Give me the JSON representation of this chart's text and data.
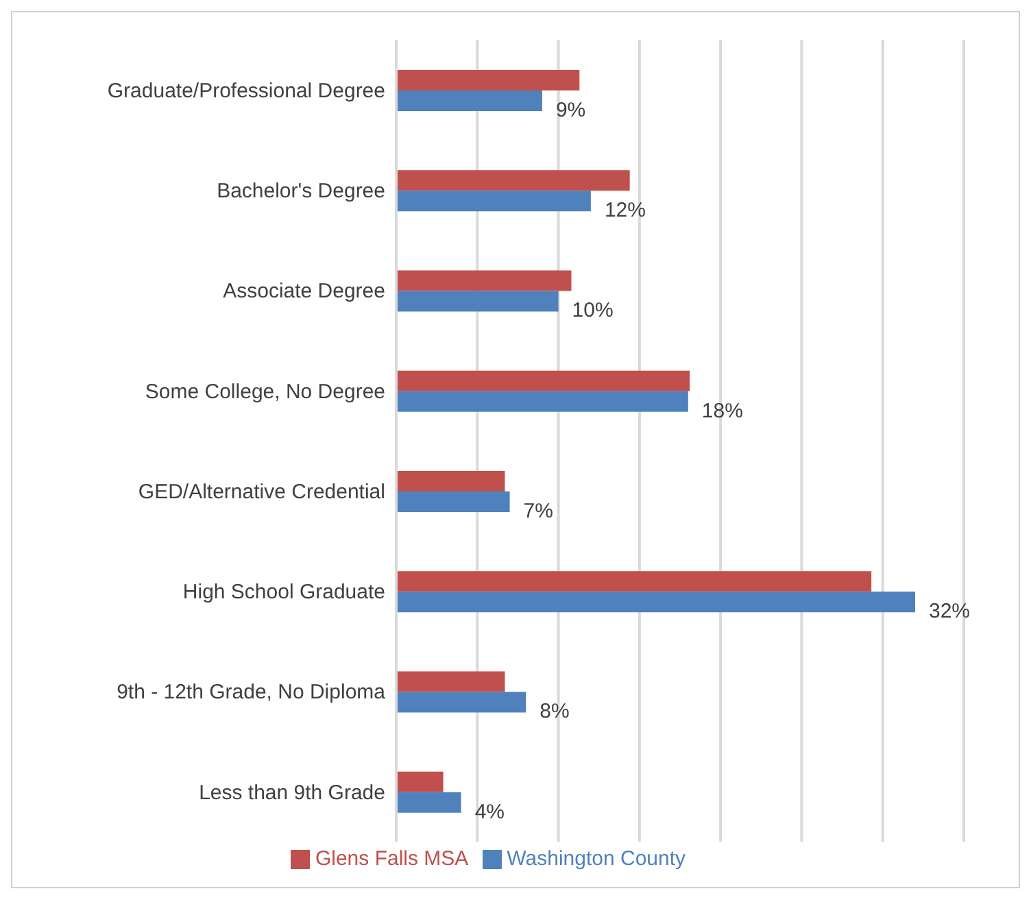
{
  "chart_data": {
    "type": "bar",
    "orientation": "horizontal",
    "categories": [
      "Graduate/Professional Degree",
      "Bachelor's Degree",
      "Associate Degree",
      "Some College, No Degree",
      "GED/Alternative Credential",
      "High School Graduate",
      "9th - 12th Grade, No Diploma",
      "Less than 9th Grade"
    ],
    "series": [
      {
        "name": "Glens Falls MSA",
        "color": "#c0504d",
        "values": [
          11.3,
          14.4,
          10.8,
          18.1,
          6.7,
          29.3,
          6.7,
          2.9
        ]
      },
      {
        "name": "Washington County",
        "color": "#4f81bd",
        "values": [
          9,
          12,
          10,
          18,
          7,
          32,
          8,
          4
        ],
        "value_labels": [
          "9%",
          "12%",
          "10%",
          "18%",
          "7%",
          "32%",
          "8%",
          "4%"
        ]
      }
    ],
    "xlim": [
      0,
      35
    ],
    "xticks": [
      {
        "value": 0,
        "label": null
      },
      {
        "value": 5,
        "label": null
      },
      {
        "value": 10,
        "label": null
      },
      {
        "value": 15,
        "label": null
      },
      {
        "value": 20,
        "label": null
      },
      {
        "value": 25,
        "label": null
      },
      {
        "value": 30,
        "label": null
      },
      {
        "value": 35,
        "label": null
      }
    ],
    "tick_labels": "y",
    "grid": "x",
    "legend": "bottom"
  }
}
